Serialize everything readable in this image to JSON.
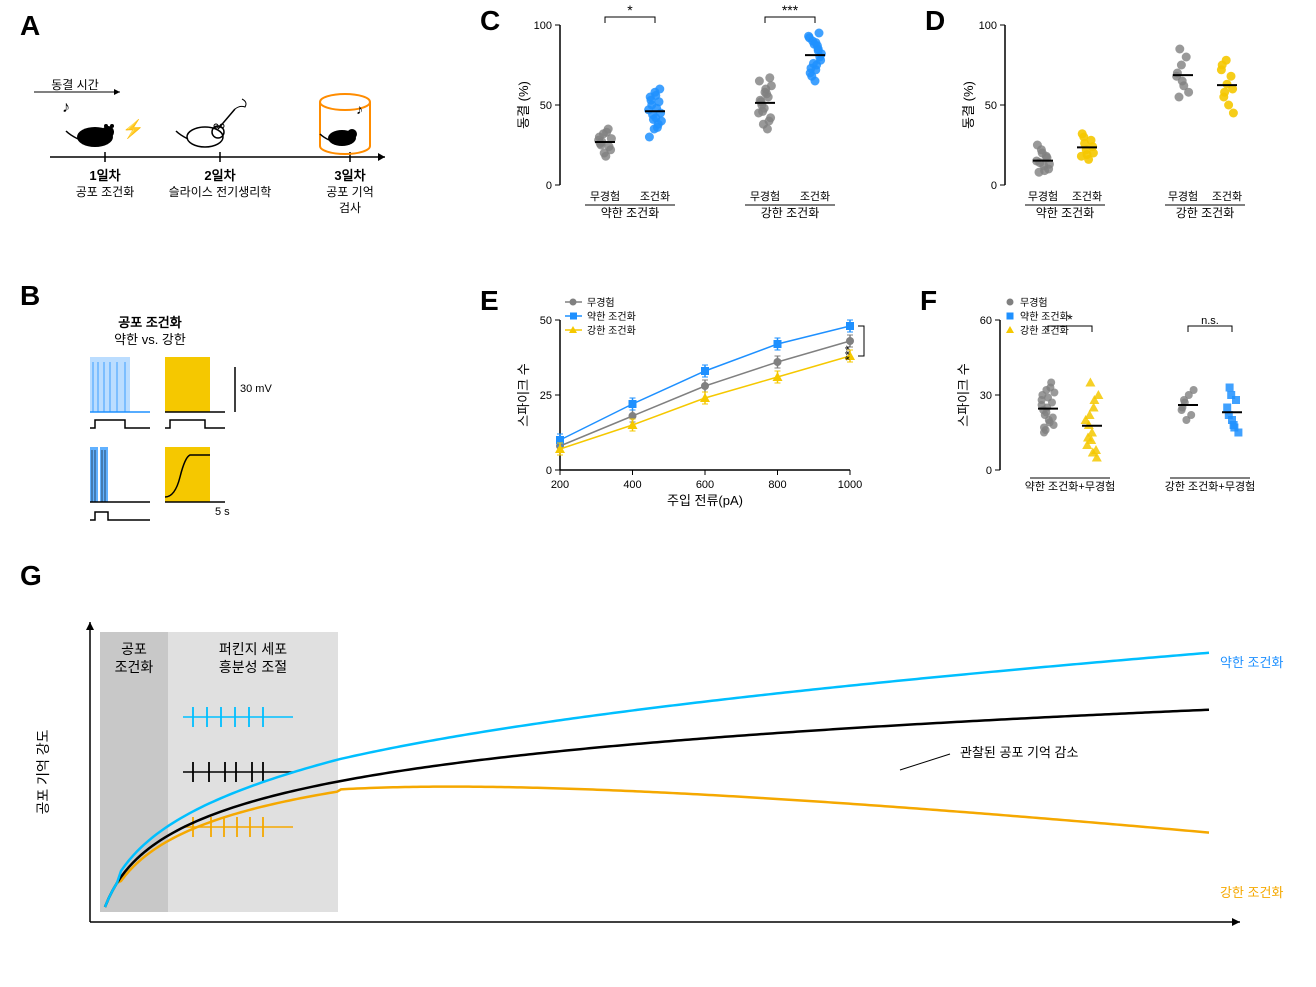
{
  "colors": {
    "control": "#808080",
    "naive": "#808080",
    "weak": "#1e90ff",
    "strong": "#f5c800",
    "orange": "#ff8c00",
    "black": "#000000",
    "light_gray": "#d3d3d3",
    "darker_gray": "#b0b0b0"
  },
  "panelA": {
    "label": "A",
    "freezing_time": "동결 시간",
    "day1": {
      "label": "1일차",
      "sub": "공포 조건화"
    },
    "day2": {
      "label": "2일차",
      "sub": "슬라이스 전기생리학"
    },
    "day3": {
      "label": "3일차",
      "sub1": "공포 기억",
      "sub2": "검사"
    }
  },
  "panelB": {
    "label": "B",
    "title1": "공포 조건화",
    "title2": "약한 vs. 강한",
    "scale1": "30 mV",
    "scale2": "5 s"
  },
  "panelC": {
    "label": "C",
    "ylabel": "동결 (%)",
    "ymax": 100,
    "groups": {
      "weak": {
        "label": "약한 조건화",
        "color_naive": "#808080",
        "color_cond": "#1e90ff",
        "naive_points": [
          28,
          25,
          32,
          18,
          35,
          22,
          30,
          27,
          20,
          33,
          24,
          29,
          26
        ],
        "cond_points": [
          42,
          38,
          45,
          30,
          50,
          35,
          48,
          52,
          40,
          55,
          44,
          58,
          36,
          60,
          47,
          53,
          41,
          56
        ]
      },
      "strong": {
        "label": "강한 조건화",
        "color_naive": "#808080",
        "color_cond": "#1e90ff",
        "naive_points": [
          45,
          52,
          38,
          60,
          55,
          42,
          65,
          50,
          48,
          57,
          40,
          62,
          53,
          46,
          58,
          35,
          67
        ],
        "cond_points": [
          72,
          85,
          78,
          92,
          68,
          88,
          75,
          95,
          82,
          70,
          90,
          65,
          87,
          80,
          93,
          73,
          76,
          89,
          84
        ]
      }
    },
    "star3": "***",
    "star1": "*",
    "naive_label": "무경험",
    "cond_label": "조건화"
  },
  "panelD": {
    "label": "D",
    "ylabel": "동결 (%)",
    "ymax": 100,
    "groups": {
      "weak": {
        "label": "약한 조건화",
        "naive_points": [
          15,
          8,
          22,
          12,
          18,
          10,
          25,
          14,
          20,
          9,
          17,
          13
        ],
        "cond_points": [
          24,
          18,
          30,
          22,
          16,
          28,
          20,
          32,
          26,
          19
        ]
      },
      "strong": {
        "label": "강한 조건화",
        "naive_points": [
          68,
          55,
          75,
          62,
          80,
          58,
          70,
          85,
          65
        ],
        "cond_points": [
          60,
          72,
          55,
          78,
          50,
          68,
          45,
          75,
          58,
          63
        ]
      }
    },
    "naive_label": "무경험",
    "cond_label": "조건화"
  },
  "panelE": {
    "label": "E",
    "ylabel": "스파이크 수",
    "xlabel": "주입 전류(pA)",
    "ymax": 50,
    "xvals": [
      200,
      400,
      600,
      800,
      1000
    ],
    "legend": {
      "naive": "무경험",
      "weak": "약한 조건화",
      "strong": "강한 조건화"
    },
    "series": {
      "naive": {
        "color": "#808080",
        "vals": [
          8,
          18,
          28,
          36,
          43
        ]
      },
      "weak": {
        "color": "#1e90ff",
        "vals": [
          10,
          22,
          33,
          42,
          48
        ]
      },
      "strong": {
        "color": "#f5c800",
        "vals": [
          7,
          15,
          24,
          31,
          38
        ]
      }
    },
    "star3": "***"
  },
  "panelF": {
    "label": "F",
    "ylabel": "스파이크 수",
    "ymax": 60,
    "legend": {
      "naive": "무경험",
      "weak": "약한 조건화",
      "strong": "강한 조건화"
    },
    "groups": {
      "left": {
        "label": "약한 조건화+무경험",
        "naive_points": [
          28,
          15,
          32,
          20,
          35,
          18,
          30,
          22,
          25,
          19,
          27,
          31,
          24,
          16,
          29,
          33,
          21,
          26,
          17,
          23
        ],
        "cond_points": [
          18,
          12,
          25,
          8,
          30,
          10,
          22,
          15,
          28,
          5,
          20,
          13,
          35,
          7
        ]
      },
      "right": {
        "label": "강한 조건화+무경험",
        "naive_points": [
          24,
          28,
          20,
          30,
          22,
          32,
          25,
          27
        ],
        "cond_points": [
          22,
          30,
          18,
          28,
          15,
          25,
          33,
          20,
          17
        ]
      }
    },
    "ns": "n.s.",
    "star1": "*"
  },
  "panelG": {
    "label": "G",
    "ylabel": "공포 기억 강도",
    "box1_line1": "공포",
    "box1_line2": "조건화",
    "box2_line1": "퍼킨지 세포",
    "box2_line2": "흥분성 조절",
    "series": {
      "weak": {
        "color": "#1e90ff",
        "label": "약한 조건화"
      },
      "naive": {
        "color": "#000000",
        "label": "관찰된 공포 기억 감소"
      },
      "strong": {
        "color": "#f5a800",
        "label": "강한 조건화"
      }
    },
    "annotation": "약한 조건화",
    "annotation2": "관찰된 공포 기억 감소",
    "annotation3": "강한 조건화"
  }
}
